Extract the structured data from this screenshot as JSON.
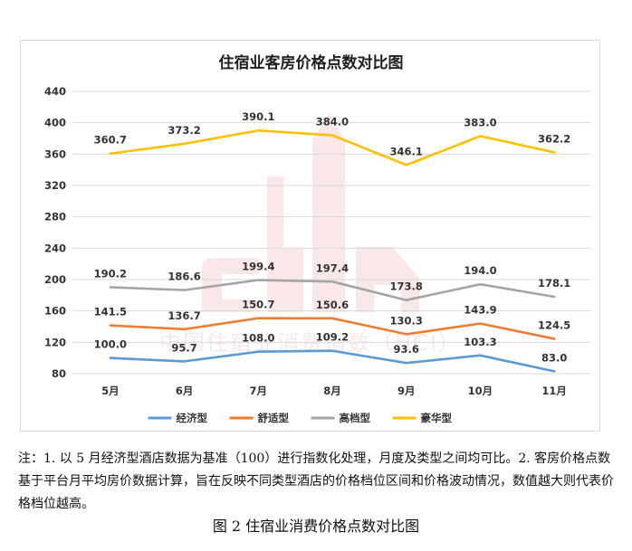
{
  "chart_data": {
    "type": "line",
    "title": "住宿业客房价格点数对比图",
    "categories": [
      "5月",
      "6月",
      "7月",
      "8月",
      "9月",
      "10月",
      "11月"
    ],
    "ylim": [
      80,
      440
    ],
    "yticks": [
      80,
      120,
      160,
      200,
      240,
      280,
      320,
      360,
      400,
      440
    ],
    "grid": true,
    "legend_position": "bottom",
    "series": [
      {
        "name": "经济型",
        "color": "#5b9bd5",
        "values": [
          100.0,
          95.7,
          108.0,
          109.2,
          93.6,
          103.3,
          83.0
        ],
        "labels": [
          "100.0",
          "95.7",
          "108.0",
          "109.2",
          "93.6",
          "103.3",
          "83.0"
        ]
      },
      {
        "name": "舒适型",
        "color": "#ed7d31",
        "values": [
          141.5,
          136.7,
          150.7,
          150.6,
          130.3,
          143.9,
          124.5
        ],
        "labels": [
          "141.5",
          "136.7",
          "150.7",
          "150.6",
          "130.3",
          "143.9",
          "124.5"
        ]
      },
      {
        "name": "高档型",
        "color": "#a5a5a5",
        "values": [
          190.2,
          186.6,
          199.4,
          197.4,
          173.8,
          194.0,
          178.1
        ],
        "labels": [
          "190.2",
          "186.6",
          "199.4",
          "197.4",
          "173.8",
          "194.0",
          "178.1"
        ]
      },
      {
        "name": "豪华型",
        "color": "#ffc000",
        "values": [
          360.7,
          373.2,
          390.1,
          384.0,
          346.1,
          383.0,
          362.2
        ],
        "labels": [
          "360.7",
          "373.2",
          "390.1",
          "384.0",
          "346.1",
          "383.0",
          "362.2"
        ]
      }
    ],
    "watermark": "中国住宿业消费指数（HCI）"
  },
  "note": "注：1. 以 5 月经济型酒店数据为基准（100）进行指数化处理，月度及类型之间均可比。2. 客房价格点数基于平台月平均房价数据计算，旨在反映不同类型酒店的价格档位区间和价格波动情况，数值越大则代表价格档位越高。",
  "caption": "图 2  住宿业消费价格点数对比图"
}
